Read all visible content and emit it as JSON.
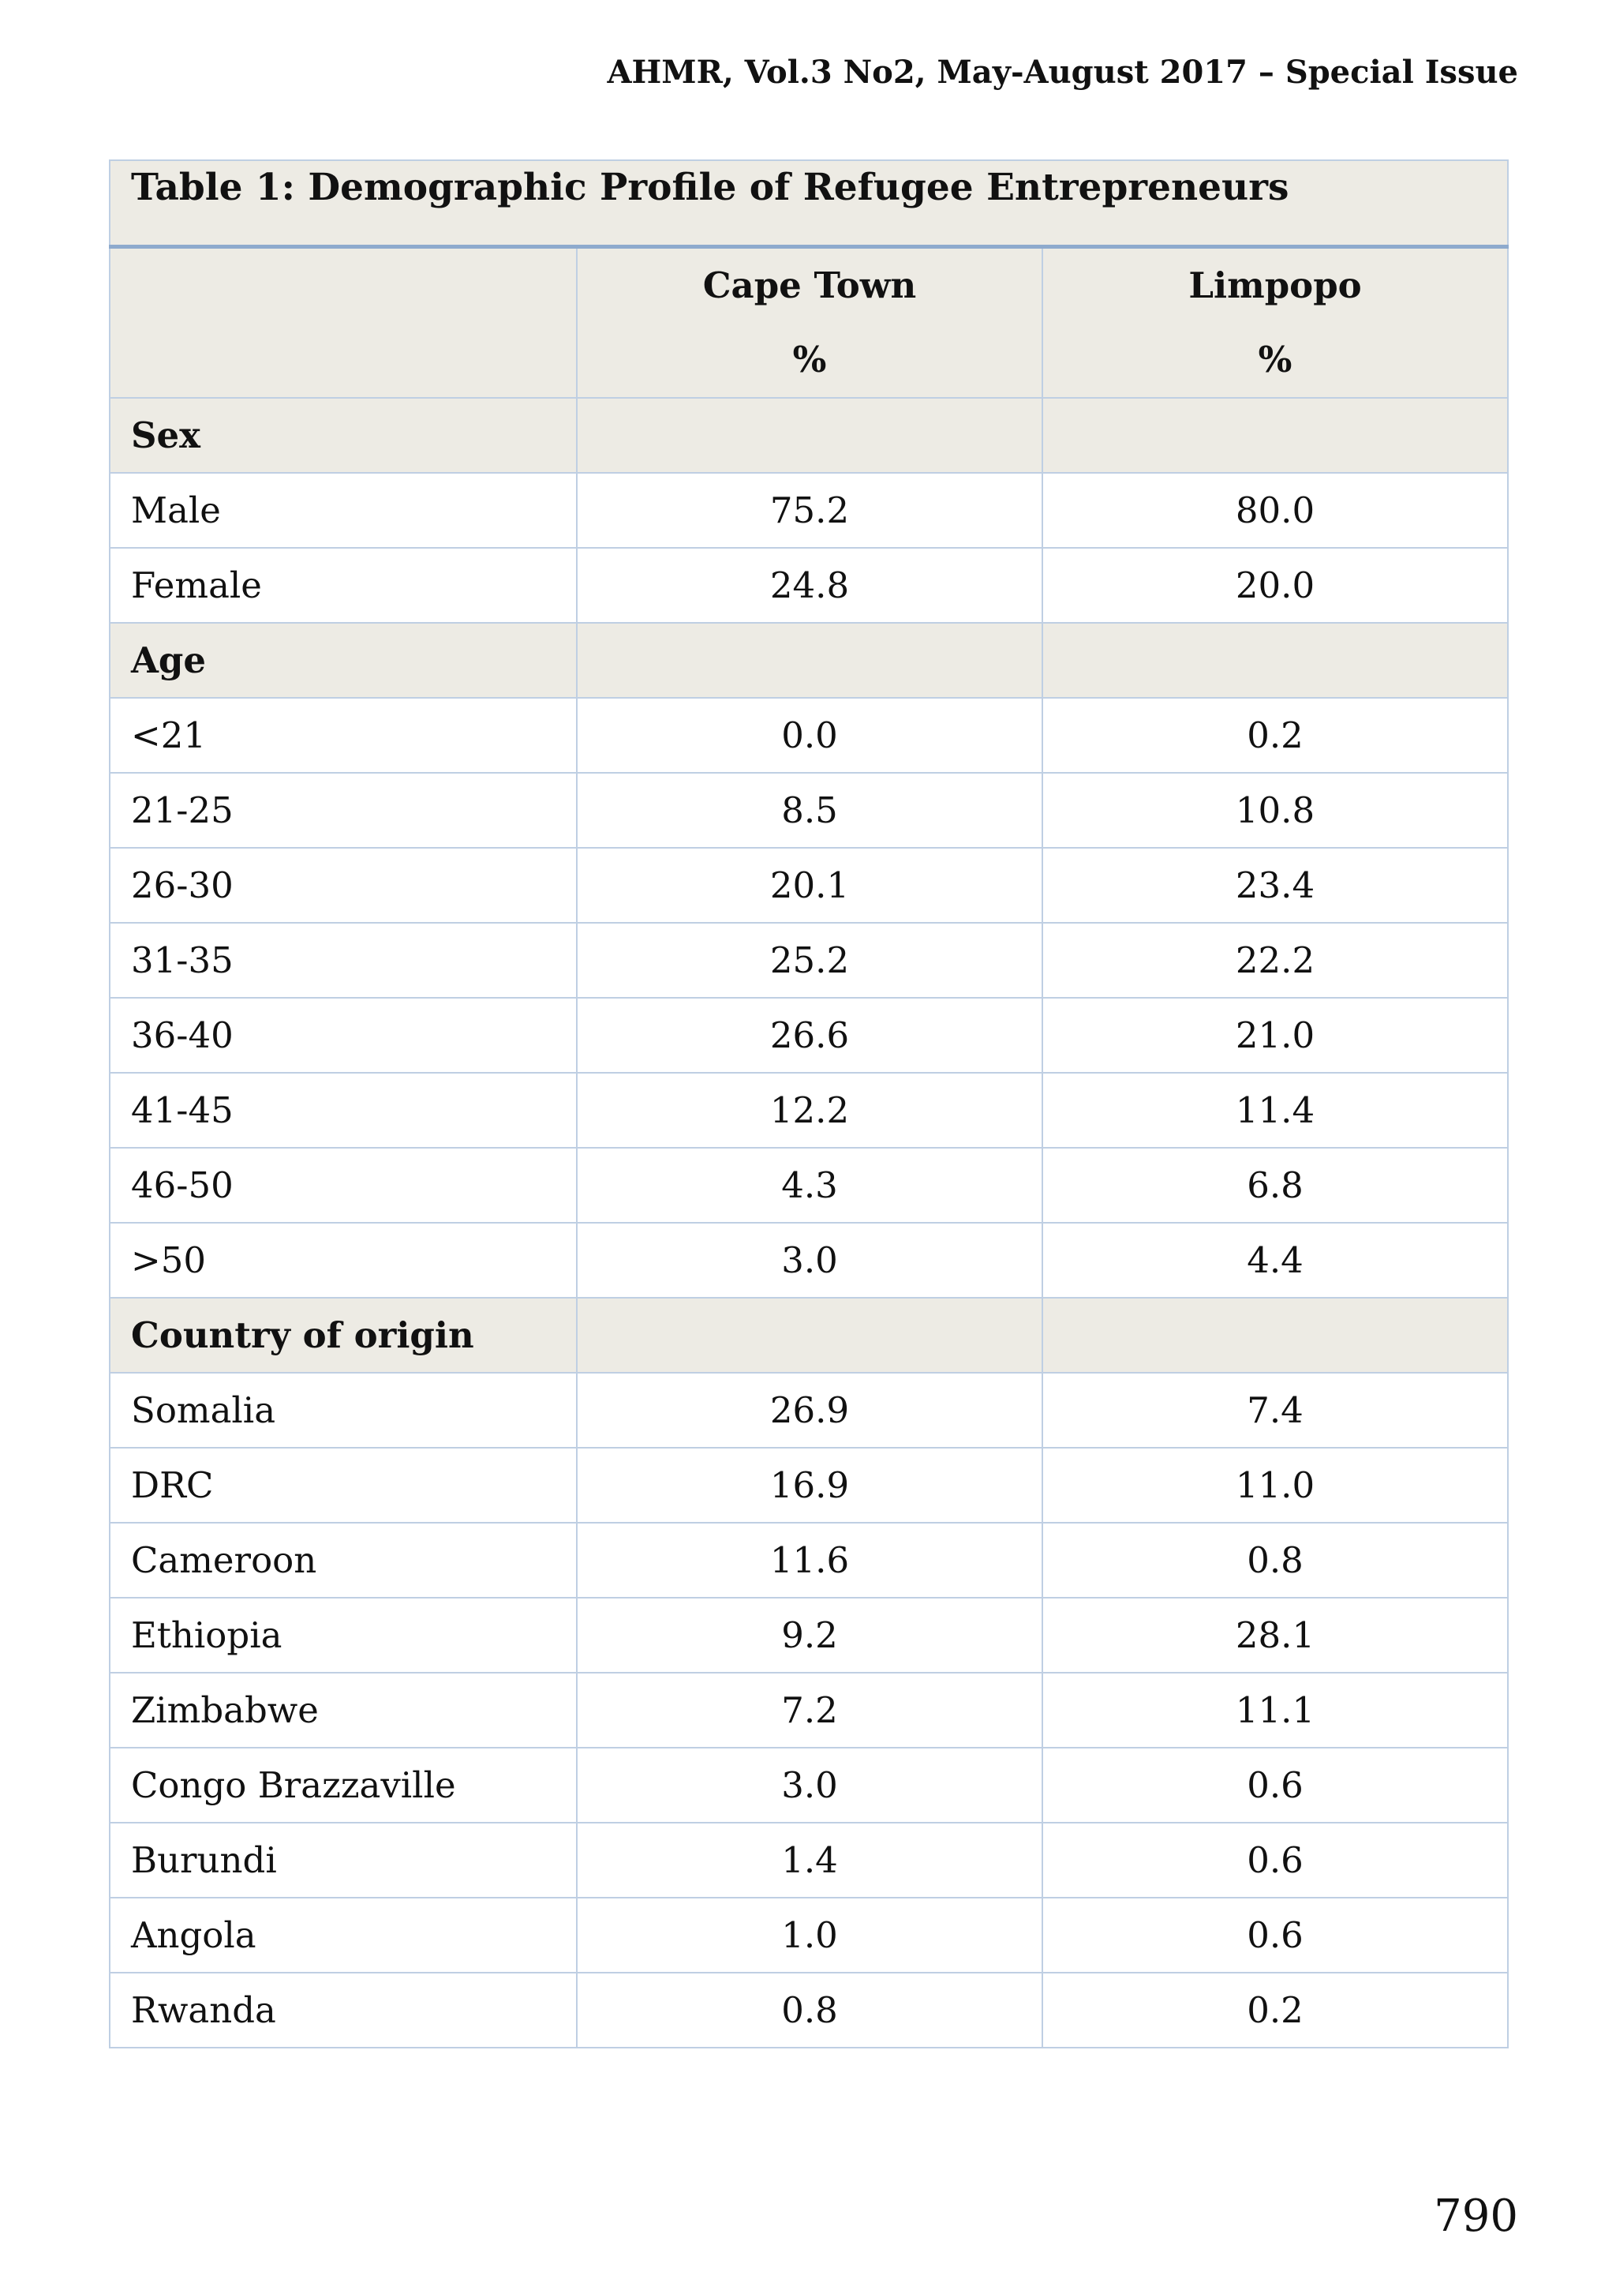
{
  "running_header": "AHMR, Vol.3 No2, May-August 2017 – Special Issue",
  "table": {
    "title": "Table 1:  Demographic Profile of Refugee Entrepreneurs",
    "columns": [
      {
        "name": "Cape Town",
        "unit": "%"
      },
      {
        "name": "Limpopo",
        "unit": "%"
      }
    ],
    "sections": [
      {
        "label": "Sex",
        "rows": [
          {
            "label": "Male",
            "cape_town": "75.2",
            "limpopo": "80.0"
          },
          {
            "label": "Female",
            "cape_town": "24.8",
            "limpopo": "20.0"
          }
        ]
      },
      {
        "label": "Age",
        "rows": [
          {
            "label": "<21",
            "cape_town": "0.0",
            "limpopo": "0.2"
          },
          {
            "label": "21-25",
            "cape_town": "8.5",
            "limpopo": "10.8"
          },
          {
            "label": "26-30",
            "cape_town": "20.1",
            "limpopo": "23.4"
          },
          {
            "label": "31-35",
            "cape_town": "25.2",
            "limpopo": "22.2"
          },
          {
            "label": "36-40",
            "cape_town": "26.6",
            "limpopo": "21.0"
          },
          {
            "label": "41-45",
            "cape_town": "12.2",
            "limpopo": "11.4"
          },
          {
            "label": "46-50",
            "cape_town": "4.3",
            "limpopo": "6.8"
          },
          {
            "label": ">50",
            "cape_town": "3.0",
            "limpopo": "4.4"
          }
        ]
      },
      {
        "label": "Country of origin",
        "rows": [
          {
            "label": "Somalia",
            "cape_town": "26.9",
            "limpopo": "7.4"
          },
          {
            "label": "DRC",
            "cape_town": "16.9",
            "limpopo": "11.0"
          },
          {
            "label": "Cameroon",
            "cape_town": "11.6",
            "limpopo": "0.8"
          },
          {
            "label": "Ethiopia",
            "cape_town": "9.2",
            "limpopo": "28.1"
          },
          {
            "label": "Zimbabwe",
            "cape_town": "7.2",
            "limpopo": "11.1"
          },
          {
            "label": "Congo Brazzaville",
            "cape_town": "3.0",
            "limpopo": "0.6"
          },
          {
            "label": "Burundi",
            "cape_town": "1.4",
            "limpopo": "0.6"
          },
          {
            "label": "Angola",
            "cape_town": "1.0",
            "limpopo": "0.6"
          },
          {
            "label": "Rwanda",
            "cape_town": "0.8",
            "limpopo": "0.2"
          }
        ]
      }
    ]
  },
  "page_number": "790"
}
